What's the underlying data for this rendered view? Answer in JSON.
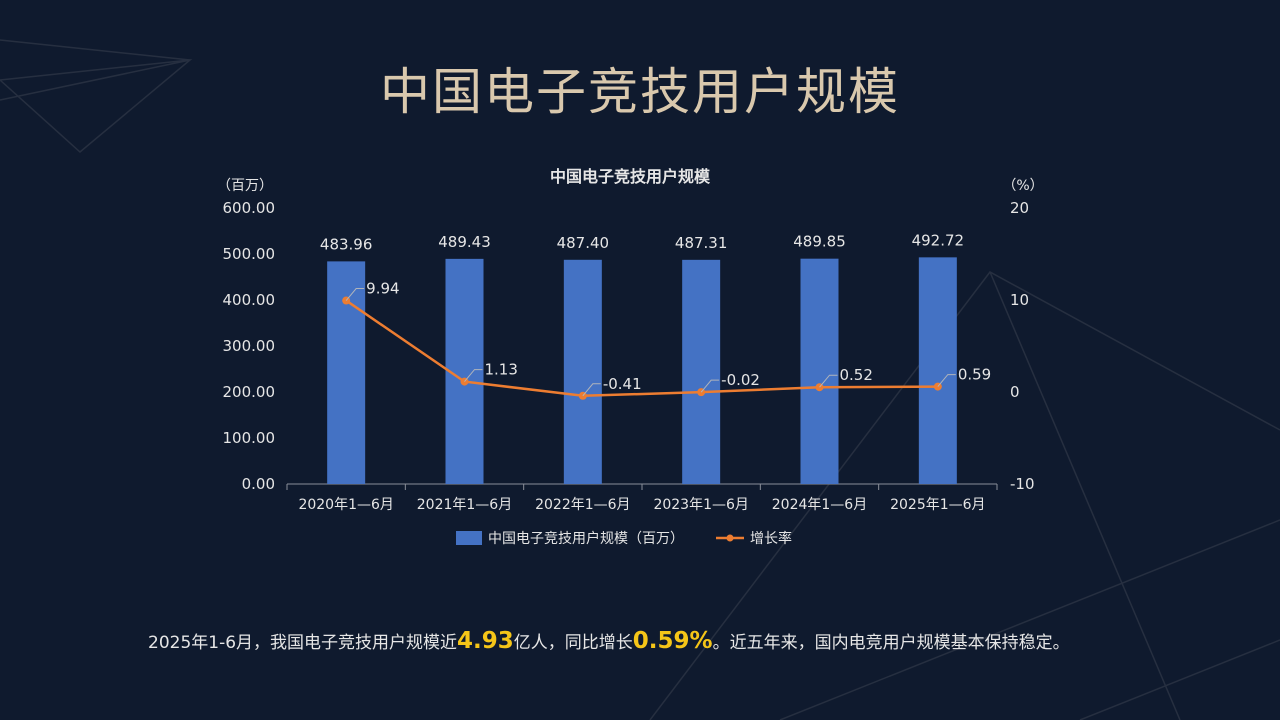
{
  "page": {
    "title": "中国电子竞技用户规模",
    "summary": {
      "part1": "2025年1-6月，我国电子竞技用户规模近",
      "highlight1": "4.93",
      "part2": "亿人，同比增长",
      "highlight2": "0.59%",
      "part3": "。近五年来，国内电竞用户规模基本保持稳定。"
    }
  },
  "colors": {
    "background": "#0f1a2e",
    "bar": "#4472c4",
    "line": "#ed7d31",
    "text": "#e6e6e6",
    "title": "#d9c8ad",
    "highlight": "#f5c518"
  },
  "chart_data": {
    "type": "bar",
    "title": "中国电子竞技用户规模",
    "ylabel": "（百万）",
    "y2label": "（%）",
    "categories": [
      "2020年1—6月",
      "2021年1—6月",
      "2022年1—6月",
      "2023年1—6月",
      "2024年1—6月",
      "2025年1—6月"
    ],
    "ylim": [
      0,
      600
    ],
    "y2lim": [
      -10,
      20
    ],
    "yticks": [
      "0.00",
      "100.00",
      "200.00",
      "300.00",
      "400.00",
      "500.00",
      "600.00"
    ],
    "y2ticks": [
      "-10",
      "0",
      "10",
      "20"
    ],
    "series": [
      {
        "name": "中国电子竞技用户规模（百万）",
        "type": "bar",
        "axis": "left",
        "values": [
          483.96,
          489.43,
          487.4,
          487.31,
          489.85,
          492.72
        ],
        "labels": [
          "483.96",
          "489.43",
          "487.40",
          "487.31",
          "489.85",
          "492.72"
        ]
      },
      {
        "name": "增长率",
        "type": "line",
        "axis": "right",
        "values": [
          9.94,
          1.13,
          -0.41,
          -0.02,
          0.52,
          0.59
        ],
        "labels": [
          "9.94",
          "1.13",
          "-0.41",
          "-0.02",
          "0.52",
          "0.59"
        ]
      }
    ],
    "legend_position": "bottom",
    "grid": false
  }
}
